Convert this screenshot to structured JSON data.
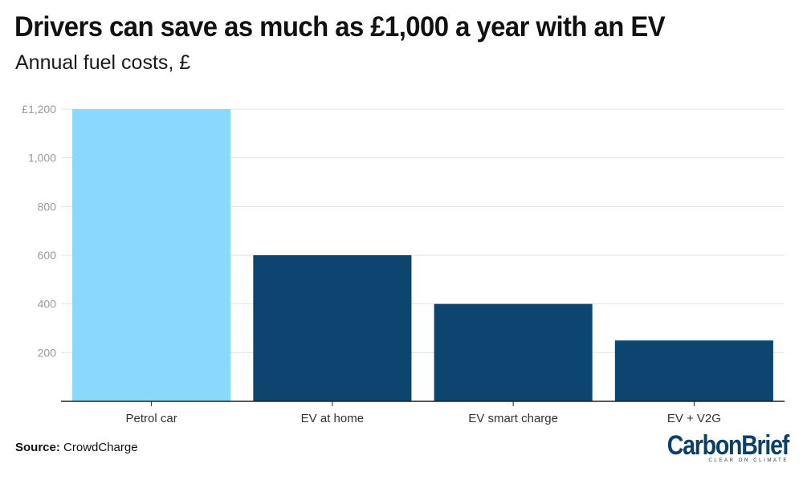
{
  "chart_data": {
    "type": "bar",
    "title": "Drivers can save as much as £1,000 a year with an EV",
    "subtitle": "Annual fuel costs, £",
    "categories": [
      "Petrol car",
      "EV at home",
      "EV smart charge",
      "EV + V2G"
    ],
    "values": [
      1200,
      600,
      400,
      250
    ],
    "bar_colors": [
      "#8ad8fb",
      "#0c4570",
      "#0c4570",
      "#0c4570"
    ],
    "ylim": [
      0,
      1200
    ],
    "yticks": [
      200,
      400,
      600,
      800,
      1000,
      1200
    ],
    "ytick_labels": [
      "200",
      "400",
      "600",
      "800",
      "1,000",
      "£1,200"
    ],
    "grid": true,
    "legend": "none"
  },
  "source": {
    "label": "Source:",
    "text": "CrowdCharge"
  },
  "logo": {
    "wordmark": "CarbonBrief",
    "tagline": "CLEAR ON CLIMATE"
  },
  "colors": {
    "gridline": "#e2e2e2",
    "axis": "#222222",
    "logo": "#0c4066"
  }
}
